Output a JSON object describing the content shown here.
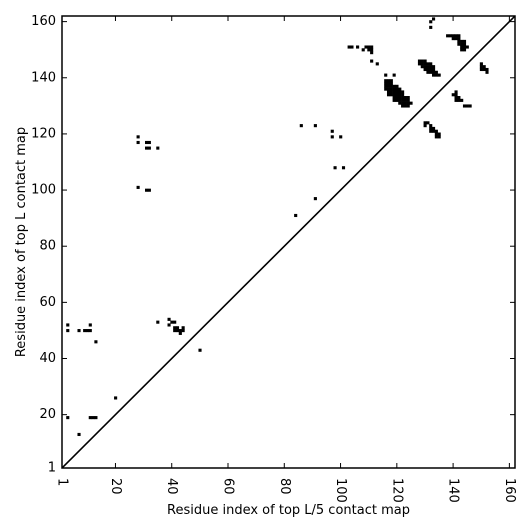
{
  "chart_data": {
    "type": "scatter",
    "xlabel": "Residue index of top L/5 contact map",
    "ylabel": "Residue index of top L contact map",
    "xlim": [
      1,
      162
    ],
    "ylim": [
      1,
      162
    ],
    "xticks": [
      1,
      20,
      40,
      60,
      80,
      100,
      120,
      140,
      160
    ],
    "yticks": [
      1,
      20,
      40,
      60,
      80,
      100,
      120,
      140,
      160
    ],
    "x_tick_labels": [
      "1",
      "20",
      "40",
      "60",
      "80",
      "100",
      "120",
      "140",
      "160"
    ],
    "y_tick_labels": [
      "1",
      "20",
      "40",
      "60",
      "80",
      "100",
      "120",
      "140",
      "160"
    ],
    "tick_label_rotation_x": 90,
    "diagonal": true,
    "grid": false,
    "marker_color": "#000000",
    "points": [
      [
        3,
        52
      ],
      [
        3,
        50
      ],
      [
        3,
        19
      ],
      [
        7,
        50
      ],
      [
        7,
        13
      ],
      [
        9,
        50
      ],
      [
        10,
        50
      ],
      [
        11,
        52
      ],
      [
        11,
        50
      ],
      [
        11,
        19
      ],
      [
        12,
        19
      ],
      [
        13,
        19
      ],
      [
        13,
        46
      ],
      [
        20,
        26
      ],
      [
        28,
        119
      ],
      [
        28,
        117
      ],
      [
        28,
        101
      ],
      [
        31,
        117
      ],
      [
        32,
        117
      ],
      [
        31,
        115
      ],
      [
        32,
        115
      ],
      [
        35,
        115
      ],
      [
        31,
        100
      ],
      [
        32,
        100
      ],
      [
        35,
        53
      ],
      [
        39,
        54
      ],
      [
        40,
        53
      ],
      [
        41,
        53
      ],
      [
        39,
        52
      ],
      [
        41,
        51
      ],
      [
        42,
        51
      ],
      [
        41,
        50
      ],
      [
        42,
        50
      ],
      [
        44,
        51
      ],
      [
        43,
        50
      ],
      [
        44,
        50
      ],
      [
        43,
        49
      ],
      [
        50,
        43
      ],
      [
        84,
        91
      ],
      [
        86,
        123
      ],
      [
        91,
        123
      ],
      [
        91,
        97
      ],
      [
        97,
        121
      ],
      [
        97,
        119
      ],
      [
        100,
        119
      ],
      [
        98,
        108
      ],
      [
        101,
        108
      ],
      [
        103,
        151
      ],
      [
        104,
        151
      ],
      [
        106,
        151
      ],
      [
        108,
        150
      ],
      [
        109,
        151
      ],
      [
        110,
        151
      ],
      [
        110,
        150
      ],
      [
        111,
        151
      ],
      [
        111,
        150
      ],
      [
        111,
        149
      ],
      [
        111,
        146
      ],
      [
        113,
        145
      ],
      [
        116,
        141
      ],
      [
        116,
        139
      ],
      [
        117,
        139
      ],
      [
        118,
        139
      ],
      [
        119,
        141
      ],
      [
        116,
        138
      ],
      [
        117,
        138
      ],
      [
        118,
        138
      ],
      [
        116,
        137
      ],
      [
        117,
        137
      ],
      [
        118,
        137
      ],
      [
        119,
        137
      ],
      [
        120,
        137
      ],
      [
        116,
        136
      ],
      [
        117,
        136
      ],
      [
        118,
        136
      ],
      [
        119,
        136
      ],
      [
        120,
        136
      ],
      [
        121,
        136
      ],
      [
        117,
        135
      ],
      [
        118,
        135
      ],
      [
        119,
        135
      ],
      [
        120,
        135
      ],
      [
        121,
        135
      ],
      [
        122,
        135
      ],
      [
        117,
        134
      ],
      [
        118,
        134
      ],
      [
        119,
        134
      ],
      [
        120,
        134
      ],
      [
        121,
        134
      ],
      [
        122,
        134
      ],
      [
        119,
        133
      ],
      [
        120,
        133
      ],
      [
        121,
        133
      ],
      [
        122,
        133
      ],
      [
        123,
        133
      ],
      [
        124,
        133
      ],
      [
        119,
        132
      ],
      [
        120,
        132
      ],
      [
        121,
        132
      ],
      [
        122,
        132
      ],
      [
        123,
        132
      ],
      [
        124,
        132
      ],
      [
        121,
        131
      ],
      [
        122,
        131
      ],
      [
        123,
        131
      ],
      [
        124,
        131
      ],
      [
        125,
        131
      ],
      [
        122,
        130
      ],
      [
        123,
        130
      ],
      [
        124,
        130
      ],
      [
        128,
        146
      ],
      [
        129,
        146
      ],
      [
        130,
        146
      ],
      [
        128,
        145
      ],
      [
        129,
        145
      ],
      [
        130,
        145
      ],
      [
        131,
        145
      ],
      [
        132,
        145
      ],
      [
        129,
        144
      ],
      [
        130,
        144
      ],
      [
        131,
        144
      ],
      [
        132,
        144
      ],
      [
        133,
        144
      ],
      [
        130,
        143
      ],
      [
        131,
        143
      ],
      [
        132,
        143
      ],
      [
        133,
        143
      ],
      [
        131,
        142
      ],
      [
        132,
        142
      ],
      [
        133,
        142
      ],
      [
        134,
        142
      ],
      [
        133,
        141
      ],
      [
        134,
        141
      ],
      [
        135,
        141
      ],
      [
        132,
        160
      ],
      [
        133,
        161
      ],
      [
        132,
        158
      ],
      [
        130,
        124
      ],
      [
        131,
        124
      ],
      [
        130,
        123
      ],
      [
        132,
        123
      ],
      [
        132,
        122
      ],
      [
        133,
        122
      ],
      [
        132,
        121
      ],
      [
        133,
        121
      ],
      [
        134,
        121
      ],
      [
        134,
        120
      ],
      [
        135,
        120
      ],
      [
        134,
        119
      ],
      [
        135,
        119
      ],
      [
        138,
        155
      ],
      [
        139,
        155
      ],
      [
        140,
        155
      ],
      [
        141,
        155
      ],
      [
        142,
        155
      ],
      [
        140,
        154
      ],
      [
        141,
        154
      ],
      [
        142,
        154
      ],
      [
        142,
        153
      ],
      [
        143,
        153
      ],
      [
        144,
        153
      ],
      [
        142,
        152
      ],
      [
        143,
        152
      ],
      [
        144,
        152
      ],
      [
        143,
        151
      ],
      [
        144,
        151
      ],
      [
        145,
        151
      ],
      [
        143,
        150
      ],
      [
        144,
        150
      ],
      [
        140,
        134
      ],
      [
        141,
        135
      ],
      [
        141,
        134
      ],
      [
        141,
        133
      ],
      [
        142,
        133
      ],
      [
        141,
        132
      ],
      [
        142,
        132
      ],
      [
        143,
        132
      ],
      [
        144,
        130
      ],
      [
        145,
        130
      ],
      [
        146,
        130
      ],
      [
        150,
        145
      ],
      [
        150,
        144
      ],
      [
        151,
        144
      ],
      [
        150,
        143
      ],
      [
        151,
        143
      ],
      [
        152,
        143
      ],
      [
        152,
        142
      ]
    ]
  }
}
